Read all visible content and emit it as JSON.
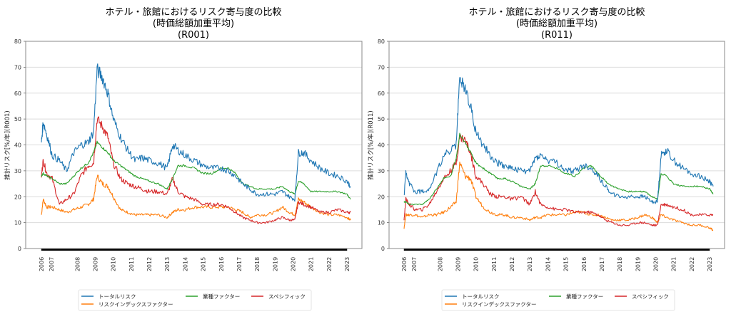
{
  "chart_data": [
    {
      "type": "line",
      "title": [
        "ホテル・旅館におけるリスク寄与度の比較",
        "(時価総額加重平均)",
        "(R001)"
      ],
      "xlabel": "",
      "ylabel": "推計リスク[%/年](R001)",
      "ylim": [
        0,
        80
      ],
      "yticks": [
        "0",
        "10",
        "20",
        "30",
        "40",
        "50",
        "60",
        "70",
        "80"
      ],
      "xlim": [
        2006.0,
        2023.3
      ],
      "xticks": [
        "2006",
        "2007",
        "2008",
        "2009",
        "2010",
        "2011",
        "2012",
        "2013",
        "2014",
        "2015",
        "2016",
        "2017",
        "2018",
        "2019",
        "2020",
        "2021",
        "2022",
        "2023"
      ],
      "grid": "horizontal",
      "legend": "bottom-center",
      "x": [
        2006.0,
        2006.1,
        2006.3,
        2006.6,
        2007.0,
        2007.4,
        2007.8,
        2008.2,
        2008.6,
        2008.9,
        2009.1,
        2009.4,
        2009.7,
        2010.0,
        2010.4,
        2010.8,
        2011.2,
        2011.6,
        2012.0,
        2012.5,
        2013.0,
        2013.3,
        2013.6,
        2014.0,
        2014.5,
        2015.0,
        2015.5,
        2016.0,
        2016.4,
        2016.8,
        2017.2,
        2017.6,
        2018.0,
        2018.5,
        2019.0,
        2019.4,
        2019.8,
        2020.1,
        2020.3,
        2020.6,
        2021.0,
        2021.5,
        2022.0,
        2022.5,
        2023.0,
        2023.2
      ],
      "series": [
        {
          "name": "トータルリスク",
          "color": "#1f77b4",
          "values": [
            41,
            49,
            44,
            36,
            34,
            30,
            37,
            40,
            41,
            45,
            69,
            66,
            60,
            50,
            43,
            38,
            34,
            35,
            34,
            33,
            31,
            40,
            38,
            36,
            34,
            32,
            31,
            31,
            30,
            28,
            25,
            23,
            21,
            21,
            21,
            22,
            20,
            19,
            37,
            37,
            34,
            31,
            29,
            28,
            26,
            24
          ]
        },
        {
          "name": "リスクインデックスファクター",
          "color": "#ff7f0e",
          "values": [
            13,
            19,
            16,
            16,
            15,
            14,
            15,
            16,
            17,
            19,
            28,
            25,
            24,
            20,
            15,
            14,
            13,
            13,
            13,
            13,
            12,
            14,
            15,
            15,
            16,
            16,
            16,
            16,
            16,
            15,
            14,
            12,
            13,
            13,
            14,
            16,
            14,
            13,
            19,
            18,
            16,
            14,
            13,
            13,
            12,
            11
          ]
        },
        {
          "name": "業種ファクター",
          "color": "#2ca02c",
          "values": [
            28,
            29,
            28,
            27,
            25,
            25,
            28,
            31,
            33,
            37,
            41,
            39,
            37,
            34,
            32,
            30,
            28,
            27,
            26,
            25,
            23,
            27,
            32,
            32,
            31,
            29,
            29,
            31,
            31,
            29,
            25,
            24,
            23,
            23,
            23,
            24,
            22,
            21,
            26,
            25,
            22,
            22,
            22,
            22,
            21,
            19
          ]
        },
        {
          "name": "スペシフィック",
          "color": "#d62728",
          "values": [
            28,
            34,
            29,
            27,
            17,
            19,
            21,
            28,
            32,
            33,
            50,
            47,
            43,
            33,
            27,
            25,
            24,
            23,
            22,
            22,
            21,
            27,
            22,
            20,
            19,
            17,
            17,
            17,
            16,
            14,
            12,
            11,
            10,
            10,
            11,
            12,
            11,
            11,
            18,
            17,
            16,
            14,
            14,
            15,
            14,
            14
          ]
        }
      ]
    },
    {
      "type": "line",
      "title": [
        "ホテル・旅館におけるリスク寄与度の比較",
        "(時価総額加重平均)",
        "(R011)"
      ],
      "xlabel": "",
      "ylabel": "推計リスク[%/年](R011)",
      "ylim": [
        0,
        80
      ],
      "yticks": [
        "0",
        "10",
        "20",
        "30",
        "40",
        "50",
        "60",
        "70",
        "80"
      ],
      "xlim": [
        2006.0,
        2023.3
      ],
      "xticks": [
        "2006",
        "2007",
        "2008",
        "2009",
        "2010",
        "2011",
        "2012",
        "2013",
        "2014",
        "2015",
        "2016",
        "2017",
        "2018",
        "2019",
        "2020",
        "2021",
        "2022",
        "2023"
      ],
      "grid": "horizontal",
      "legend": "bottom-center",
      "x": [
        2006.0,
        2006.1,
        2006.3,
        2006.6,
        2007.0,
        2007.4,
        2007.8,
        2008.2,
        2008.6,
        2008.9,
        2009.1,
        2009.4,
        2009.7,
        2010.0,
        2010.4,
        2010.8,
        2011.2,
        2011.6,
        2012.0,
        2012.5,
        2013.0,
        2013.3,
        2013.6,
        2014.0,
        2014.5,
        2015.0,
        2015.5,
        2016.0,
        2016.4,
        2016.8,
        2017.2,
        2017.6,
        2018.0,
        2018.5,
        2019.0,
        2019.4,
        2019.8,
        2020.1,
        2020.3,
        2020.6,
        2021.0,
        2021.5,
        2022.0,
        2022.5,
        2023.0,
        2023.2
      ],
      "series": [
        {
          "name": "トータルリスク",
          "color": "#1f77b4",
          "values": [
            20,
            29,
            25,
            22,
            22,
            23,
            29,
            36,
            38,
            40,
            66,
            62,
            55,
            45,
            40,
            36,
            33,
            32,
            31,
            30,
            30,
            35,
            36,
            34,
            33,
            30,
            30,
            32,
            31,
            28,
            24,
            21,
            20,
            20,
            20,
            20,
            18,
            18,
            36,
            38,
            34,
            31,
            29,
            28,
            26,
            24
          ]
        },
        {
          "name": "リスクインデックスファクター",
          "color": "#ff7f0e",
          "values": [
            8,
            13,
            13,
            13,
            12,
            13,
            13,
            14,
            16,
            18,
            33,
            28,
            27,
            20,
            16,
            14,
            13,
            13,
            12,
            12,
            11,
            12,
            12,
            13,
            13,
            13,
            14,
            14,
            13,
            13,
            12,
            11,
            11,
            11,
            12,
            13,
            12,
            10,
            13,
            12,
            11,
            10,
            9,
            9,
            8,
            7
          ]
        },
        {
          "name": "業種ファクター",
          "color": "#2ca02c",
          "values": [
            18,
            18,
            17,
            17,
            17,
            19,
            23,
            27,
            28,
            35,
            44,
            41,
            37,
            33,
            31,
            29,
            27,
            27,
            26,
            24,
            23,
            25,
            32,
            32,
            31,
            29,
            28,
            31,
            32,
            29,
            26,
            24,
            23,
            22,
            22,
            22,
            20,
            19,
            29,
            28,
            25,
            24,
            24,
            24,
            23,
            21
          ]
        },
        {
          "name": "スペシフィック",
          "color": "#d62728",
          "values": [
            11,
            19,
            17,
            15,
            15,
            17,
            22,
            27,
            30,
            33,
            43,
            42,
            37,
            28,
            25,
            21,
            20,
            20,
            19,
            20,
            17,
            22,
            17,
            16,
            15,
            15,
            14,
            14,
            14,
            13,
            11,
            10,
            9,
            9,
            10,
            10,
            9,
            9,
            17,
            17,
            16,
            15,
            13,
            13,
            13,
            13
          ]
        }
      ]
    }
  ],
  "legend_layout": [
    [
      "トータルリスク",
      "業種ファクター",
      "スペシフィック"
    ],
    [
      "リスクインデックスファクター"
    ]
  ]
}
